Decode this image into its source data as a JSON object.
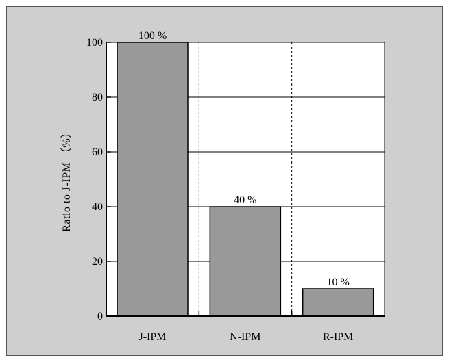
{
  "chart_data": {
    "type": "bar",
    "categories": [
      "J-IPM",
      "N-IPM",
      "R-IPM"
    ],
    "values": [
      100,
      40,
      10
    ],
    "data_labels": [
      "100 %",
      "40 %",
      "10 %"
    ],
    "title": "",
    "xlabel": "",
    "ylabel": "Ratio to J-IPM （%）",
    "ylim": [
      0,
      100
    ],
    "yticks": [
      0,
      20,
      40,
      60,
      80,
      100
    ],
    "grid": true,
    "bar_color": "#999999",
    "background_color": "#cfcfcf",
    "plot_background": "#ffffff"
  }
}
